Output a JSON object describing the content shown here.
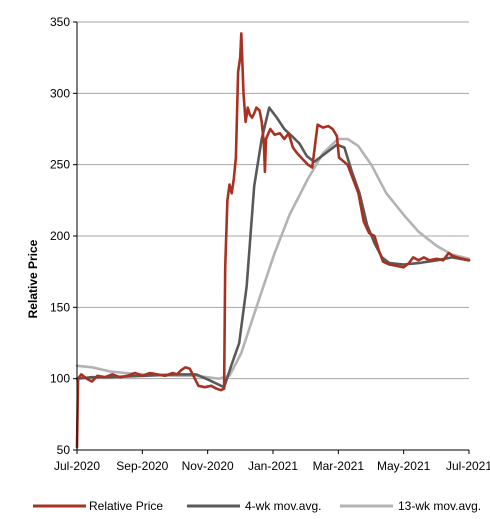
{
  "chart_data": {
    "type": "line",
    "title": "",
    "xlabel": "",
    "ylabel": "Relative Price",
    "ylim": [
      50,
      350
    ],
    "yticks": [
      50,
      100,
      150,
      200,
      250,
      300,
      350
    ],
    "xlim": [
      "2020-07-01",
      "2021-07-01"
    ],
    "xticks": [
      "Jul-2020",
      "Sep-2020",
      "Nov-2020",
      "Jan-2021",
      "Mar-2021",
      "May-2021",
      "Jul-2021"
    ],
    "grid": "horizontal",
    "legend_position": "bottom",
    "series": [
      {
        "name": "Relative Price",
        "color": "#a83222",
        "points": [
          [
            "2020-07-01",
            52
          ],
          [
            "2020-07-02",
            100
          ],
          [
            "2020-07-05",
            103
          ],
          [
            "2020-07-10",
            100
          ],
          [
            "2020-07-15",
            98
          ],
          [
            "2020-07-20",
            102
          ],
          [
            "2020-07-27",
            101
          ],
          [
            "2020-08-03",
            103
          ],
          [
            "2020-08-10",
            101
          ],
          [
            "2020-08-17",
            102
          ],
          [
            "2020-08-24",
            104
          ],
          [
            "2020-08-31",
            102
          ],
          [
            "2020-09-07",
            104
          ],
          [
            "2020-09-14",
            103
          ],
          [
            "2020-09-21",
            102
          ],
          [
            "2020-09-28",
            104
          ],
          [
            "2020-10-02",
            103
          ],
          [
            "2020-10-06",
            106
          ],
          [
            "2020-10-10",
            108
          ],
          [
            "2020-10-14",
            107
          ],
          [
            "2020-10-18",
            101
          ],
          [
            "2020-10-22",
            95
          ],
          [
            "2020-10-28",
            94
          ],
          [
            "2020-11-03",
            95
          ],
          [
            "2020-11-08",
            93
          ],
          [
            "2020-11-12",
            92
          ],
          [
            "2020-11-15",
            93
          ],
          [
            "2020-11-16",
            178
          ],
          [
            "2020-11-18",
            225
          ],
          [
            "2020-11-20",
            236
          ],
          [
            "2020-11-22",
            230
          ],
          [
            "2020-11-24",
            240
          ],
          [
            "2020-11-26",
            255
          ],
          [
            "2020-11-28",
            315
          ],
          [
            "2020-11-30",
            325
          ],
          [
            "2020-12-01",
            342
          ],
          [
            "2020-12-03",
            300
          ],
          [
            "2020-12-05",
            280
          ],
          [
            "2020-12-07",
            290
          ],
          [
            "2020-12-09",
            285
          ],
          [
            "2020-12-11",
            283
          ],
          [
            "2020-12-13",
            286
          ],
          [
            "2020-12-15",
            290
          ],
          [
            "2020-12-18",
            288
          ],
          [
            "2020-12-20",
            280
          ],
          [
            "2020-12-22",
            265
          ],
          [
            "2020-12-23",
            245
          ],
          [
            "2020-12-24",
            268
          ],
          [
            "2020-12-28",
            275
          ],
          [
            "2021-01-01",
            271
          ],
          [
            "2021-01-06",
            272
          ],
          [
            "2021-01-10",
            268
          ],
          [
            "2021-01-14",
            272
          ],
          [
            "2021-01-18",
            262
          ],
          [
            "2021-01-22",
            258
          ],
          [
            "2021-01-27",
            254
          ],
          [
            "2021-02-01",
            250
          ],
          [
            "2021-02-05",
            248
          ],
          [
            "2021-02-10",
            278
          ],
          [
            "2021-02-15",
            276
          ],
          [
            "2021-02-20",
            277
          ],
          [
            "2021-02-24",
            275
          ],
          [
            "2021-02-28",
            270
          ],
          [
            "2021-03-02",
            255
          ],
          [
            "2021-03-05",
            253
          ],
          [
            "2021-03-10",
            250
          ],
          [
            "2021-03-15",
            240
          ],
          [
            "2021-03-20",
            230
          ],
          [
            "2021-03-25",
            210
          ],
          [
            "2021-03-30",
            202
          ],
          [
            "2021-04-04",
            200
          ],
          [
            "2021-04-08",
            190
          ],
          [
            "2021-04-12",
            182
          ],
          [
            "2021-04-18",
            180
          ],
          [
            "2021-04-25",
            179
          ],
          [
            "2021-05-01",
            178
          ],
          [
            "2021-05-06",
            181
          ],
          [
            "2021-05-10",
            185
          ],
          [
            "2021-05-15",
            183
          ],
          [
            "2021-05-20",
            185
          ],
          [
            "2021-05-25",
            183
          ],
          [
            "2021-06-01",
            184
          ],
          [
            "2021-06-07",
            183
          ],
          [
            "2021-06-12",
            188
          ],
          [
            "2021-06-16",
            186
          ],
          [
            "2021-06-20",
            185
          ],
          [
            "2021-06-25",
            184
          ],
          [
            "2021-07-01",
            183
          ]
        ]
      },
      {
        "name": "4-wk mov.avg.",
        "color": "#595959",
        "points": [
          [
            "2020-07-01",
            100
          ],
          [
            "2020-07-15",
            101
          ],
          [
            "2020-08-01",
            101
          ],
          [
            "2020-09-01",
            102
          ],
          [
            "2020-10-01",
            103
          ],
          [
            "2020-10-20",
            103
          ],
          [
            "2020-11-01",
            99
          ],
          [
            "2020-11-15",
            94
          ],
          [
            "2020-11-22",
            110
          ],
          [
            "2020-11-29",
            125
          ],
          [
            "2020-12-06",
            165
          ],
          [
            "2020-12-13",
            235
          ],
          [
            "2020-12-20",
            268
          ],
          [
            "2020-12-27",
            290
          ],
          [
            "2021-01-03",
            283
          ],
          [
            "2021-01-10",
            275
          ],
          [
            "2021-01-17",
            270
          ],
          [
            "2021-01-24",
            265
          ],
          [
            "2021-01-31",
            256
          ],
          [
            "2021-02-07",
            252
          ],
          [
            "2021-02-14",
            256
          ],
          [
            "2021-02-21",
            260
          ],
          [
            "2021-02-28",
            264
          ],
          [
            "2021-03-07",
            262
          ],
          [
            "2021-03-14",
            245
          ],
          [
            "2021-03-21",
            230
          ],
          [
            "2021-03-28",
            208
          ],
          [
            "2021-04-04",
            195
          ],
          [
            "2021-04-11",
            185
          ],
          [
            "2021-04-18",
            181
          ],
          [
            "2021-05-01",
            180
          ],
          [
            "2021-05-15",
            181
          ],
          [
            "2021-06-01",
            183
          ],
          [
            "2021-06-15",
            185
          ],
          [
            "2021-07-01",
            183
          ]
        ]
      },
      {
        "name": "13-wk mov.avg.",
        "color": "#b3b3b3",
        "points": [
          [
            "2020-07-01",
            109
          ],
          [
            "2020-07-15",
            108
          ],
          [
            "2020-08-01",
            105
          ],
          [
            "2020-08-15",
            104
          ],
          [
            "2020-09-01",
            103
          ],
          [
            "2020-10-01",
            102
          ],
          [
            "2020-10-20",
            102
          ],
          [
            "2020-11-10",
            100
          ],
          [
            "2020-11-20",
            102
          ],
          [
            "2020-12-01",
            118
          ],
          [
            "2020-12-15",
            150
          ],
          [
            "2021-01-01",
            188
          ],
          [
            "2021-01-15",
            215
          ],
          [
            "2021-02-01",
            240
          ],
          [
            "2021-02-15",
            258
          ],
          [
            "2021-03-01",
            268
          ],
          [
            "2021-03-10",
            268
          ],
          [
            "2021-03-20",
            263
          ],
          [
            "2021-04-01",
            250
          ],
          [
            "2021-04-15",
            230
          ],
          [
            "2021-05-01",
            215
          ],
          [
            "2021-05-15",
            203
          ],
          [
            "2021-06-01",
            193
          ],
          [
            "2021-06-15",
            187
          ],
          [
            "2021-07-01",
            184
          ]
        ]
      }
    ]
  }
}
